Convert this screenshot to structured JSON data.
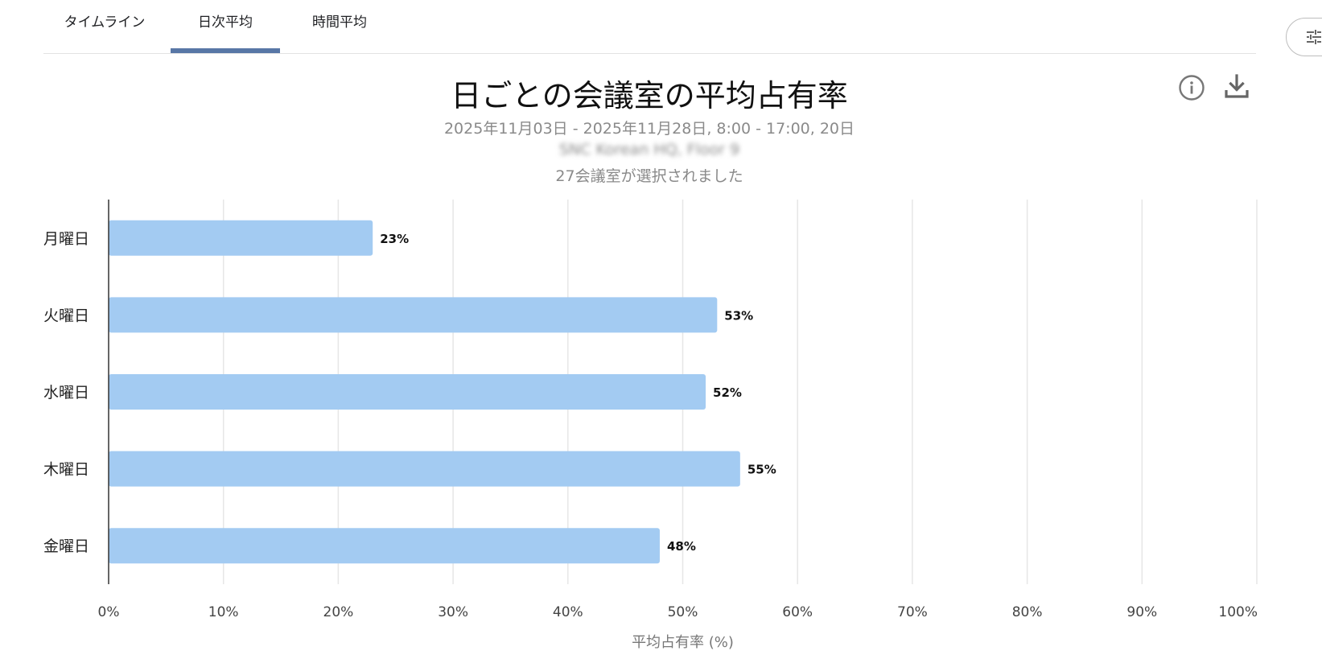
{
  "tabs": [
    {
      "label": "タイムライン",
      "active": false
    },
    {
      "label": "日次平均",
      "active": true
    },
    {
      "label": "時間平均",
      "active": false
    }
  ],
  "header": {
    "title": "日ごとの会議室の平均占有率",
    "subtitle": "2025年11月03日 - 2025年11月28日, 8:00 - 17:00, 20日",
    "location": "SNC Korean HQ, Floor 9",
    "selection": "27会議室が選択されました"
  },
  "icons": {
    "info": "info-icon",
    "download": "download-icon",
    "filter": "filter-icon"
  },
  "colors": {
    "bar": "#a3cbf2",
    "accent": "#5877a6",
    "grid": "#e6e6e6"
  },
  "chart_data": {
    "type": "bar",
    "orientation": "horizontal",
    "categories": [
      "月曜日",
      "火曜日",
      "水曜日",
      "木曜日",
      "金曜日"
    ],
    "values": [
      23,
      53,
      52,
      55,
      48
    ],
    "value_labels": [
      "23%",
      "53%",
      "52%",
      "55%",
      "48%"
    ],
    "xlim": [
      0,
      100
    ],
    "xticks": [
      0,
      10,
      20,
      30,
      40,
      50,
      60,
      70,
      80,
      90,
      100
    ],
    "xtick_labels": [
      "0%",
      "10%",
      "20%",
      "30%",
      "40%",
      "50%",
      "60%",
      "70%",
      "80%",
      "90%",
      "100%"
    ],
    "xlabel": "平均占有率 (%)",
    "ylabel": "",
    "grid": true
  }
}
